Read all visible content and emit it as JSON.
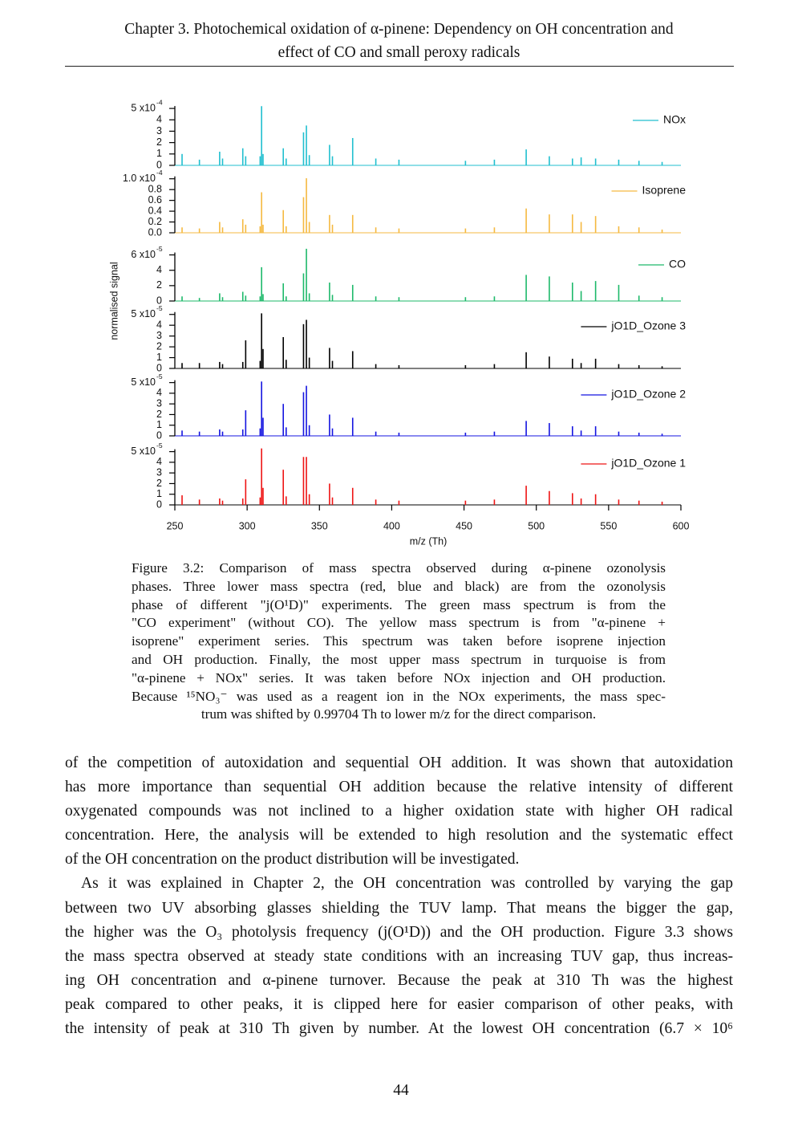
{
  "header": {
    "lines": [
      "Chapter 3. Photochemical oxidation of α-pinene: Dependency on OH concentration and",
      "effect of CO and small peroxy radicals"
    ]
  },
  "chart_data": [
    {
      "type": "bar",
      "name": "NOx",
      "color": "#20bfcf",
      "legend": "upper right",
      "xlim": [
        250,
        600
      ],
      "ylim": [
        0,
        0.00055
      ],
      "yticks": [
        0,
        {
          "value": 0.0001,
          "label": "1"
        },
        {
          "value": 0.0002,
          "label": "2"
        },
        {
          "value": 0.0003,
          "label": "3"
        },
        {
          "value": 0.0004,
          "label": "4"
        },
        {
          "value": 0.0005,
          "label": "5 x10",
          "exponent": "-4"
        }
      ],
      "x": [
        255,
        267,
        281,
        283,
        297,
        299,
        309,
        310,
        311,
        325,
        327,
        339,
        341,
        343,
        357,
        359,
        373,
        389,
        405,
        451,
        471,
        493,
        509,
        525,
        531,
        541,
        557,
        571,
        587
      ],
      "values": [
        0.0001,
        5e-05,
        0.00012,
        6e-05,
        0.00015,
        8e-05,
        8e-05,
        0.00052,
        0.0001,
        0.00015,
        6e-05,
        0.00029,
        0.00035,
        9e-05,
        0.00018,
        8e-05,
        0.00024,
        6e-05,
        5e-05,
        4e-05,
        5e-05,
        0.00014,
        8e-05,
        6e-05,
        7e-05,
        6e-05,
        5e-05,
        4e-05,
        3e-05
      ]
    },
    {
      "type": "bar",
      "name": "Isoprene",
      "color": "#f5b940",
      "legend": "upper right",
      "xlim": [
        250,
        600
      ],
      "ylim": [
        0,
        0.00011
      ],
      "yticks": [
        {
          "value": 0,
          "label": "0.0"
        },
        {
          "value": 2e-05,
          "label": "0.2"
        },
        {
          "value": 4e-05,
          "label": "0.4"
        },
        {
          "value": 6e-05,
          "label": "0.6"
        },
        {
          "value": 8e-05,
          "label": "0.8"
        },
        {
          "value": 0.0001,
          "label": "1.0 x10",
          "exponent": "-4"
        }
      ],
      "x": [
        255,
        267,
        281,
        283,
        297,
        299,
        309,
        310,
        311,
        325,
        327,
        339,
        341,
        343,
        357,
        359,
        373,
        389,
        405,
        451,
        471,
        493,
        509,
        525,
        531,
        541,
        557,
        571,
        587
      ],
      "values": [
        1e-05,
        8e-06,
        2e-05,
        1e-05,
        2.5e-05,
        1.5e-05,
        1.2e-05,
        7.5e-05,
        1.5e-05,
        4.2e-05,
        1.2e-05,
        6.6e-05,
        0.000101,
        2e-05,
        3.3e-05,
        1.5e-05,
        3.3e-05,
        1e-05,
        8e-06,
        8e-06,
        1e-05,
        4.5e-05,
        3.4e-05,
        3.4e-05,
        2e-05,
        3.1e-05,
        1.2e-05,
        1e-05,
        6e-06
      ]
    },
    {
      "type": "bar",
      "name": "CO",
      "color": "#1db96a",
      "legend": "upper right",
      "xlim": [
        250,
        600
      ],
      "ylim": [
        0,
        7e-05
      ],
      "ylabel": "normalised signal",
      "yticks": [
        0,
        {
          "value": 2e-05,
          "label": "2"
        },
        {
          "value": 4e-05,
          "label": "4"
        },
        {
          "value": 6e-05,
          "label": "6 x10",
          "exponent": "-5"
        }
      ],
      "x": [
        255,
        267,
        281,
        283,
        297,
        299,
        309,
        310,
        311,
        325,
        327,
        339,
        341,
        343,
        357,
        359,
        373,
        389,
        405,
        451,
        471,
        493,
        509,
        525,
        531,
        541,
        557,
        571,
        587
      ],
      "values": [
        6e-06,
        4e-06,
        1e-05,
        5e-06,
        1.2e-05,
        7e-06,
        6e-06,
        4.4e-05,
        9e-06,
        2.3e-05,
        6e-06,
        3.6e-05,
        6.8e-05,
        1e-05,
        2.4e-05,
        8e-06,
        2.1e-05,
        6e-06,
        5e-06,
        5e-06,
        6e-06,
        3.4e-05,
        3.2e-05,
        2.4e-05,
        1.3e-05,
        2.6e-05,
        2.1e-05,
        7e-06,
        5e-06
      ]
    },
    {
      "type": "bar",
      "name": "jO1D_Ozone 3",
      "color": "#000000",
      "legend": "upper right",
      "xlim": [
        250,
        600
      ],
      "ylim": [
        0,
        5.5e-05
      ],
      "yticks": [
        0,
        {
          "value": 1e-05,
          "label": "1"
        },
        {
          "value": 2e-05,
          "label": "2"
        },
        {
          "value": 3e-05,
          "label": "3"
        },
        {
          "value": 4e-05,
          "label": "4"
        },
        {
          "value": 5e-05,
          "label": "5 x10",
          "exponent": "-5"
        }
      ],
      "x": [
        255,
        267,
        281,
        283,
        297,
        299,
        309,
        310,
        311,
        325,
        327,
        339,
        341,
        343,
        357,
        359,
        373,
        389,
        405,
        451,
        471,
        493,
        509,
        525,
        531,
        541,
        557,
        571,
        587
      ],
      "values": [
        5e-06,
        5e-06,
        6e-06,
        4e-06,
        6e-06,
        2.6e-05,
        7e-06,
        5.1e-05,
        1.8e-05,
        2.9e-05,
        8e-06,
        4.1e-05,
        4.5e-05,
        1e-05,
        1.9e-05,
        7e-06,
        1.6e-05,
        4e-06,
        3e-06,
        3e-06,
        4e-06,
        1.5e-05,
        1.1e-05,
        9e-06,
        5e-06,
        9e-06,
        4e-06,
        3e-06,
        2e-06
      ]
    },
    {
      "type": "bar",
      "name": "jO1D_Ozone 2",
      "color": "#1414e0",
      "legend": "upper right",
      "xlim": [
        250,
        600
      ],
      "ylim": [
        0,
        5.5e-05
      ],
      "yticks": [
        0,
        {
          "value": 1e-05,
          "label": "1"
        },
        {
          "value": 2e-05,
          "label": "2"
        },
        {
          "value": 3e-05,
          "label": "3"
        },
        {
          "value": 4e-05,
          "label": "4"
        },
        {
          "value": 5e-05,
          "label": "5 x10",
          "exponent": "-5"
        }
      ],
      "x": [
        255,
        267,
        281,
        283,
        297,
        299,
        309,
        310,
        311,
        325,
        327,
        339,
        341,
        343,
        357,
        359,
        373,
        389,
        405,
        451,
        471,
        493,
        509,
        525,
        531,
        541,
        557,
        571,
        587
      ],
      "values": [
        5e-06,
        4e-06,
        6e-06,
        4e-06,
        6e-06,
        2.4e-05,
        7e-06,
        5.1e-05,
        1.7e-05,
        3e-05,
        8e-06,
        4.1e-05,
        4.7e-05,
        1e-05,
        2e-05,
        7e-06,
        1.7e-05,
        4e-06,
        3e-06,
        3e-06,
        4e-06,
        1.4e-05,
        1.2e-05,
        9e-06,
        5e-06,
        9e-06,
        4e-06,
        3e-06,
        2e-06
      ]
    },
    {
      "type": "bar",
      "name": "jO1D_Ozone 1",
      "color": "#ee1414",
      "legend": "upper right",
      "xlim": [
        250,
        600
      ],
      "xlabel": "m/z (Th)",
      "xticks": [
        250,
        300,
        350,
        400,
        450,
        500,
        550,
        600
      ],
      "ylim": [
        0,
        5.5e-05
      ],
      "yticks": [
        0,
        {
          "value": 1e-05,
          "label": "1"
        },
        {
          "value": 2e-05,
          "label": "2"
        },
        {
          "value": 3e-05,
          "label": "3"
        },
        {
          "value": 4e-05,
          "label": "4"
        },
        {
          "value": 5e-05,
          "label": "5 x10",
          "exponent": "-5"
        }
      ],
      "x": [
        255,
        267,
        281,
        283,
        297,
        299,
        309,
        310,
        311,
        325,
        327,
        339,
        341,
        343,
        357,
        359,
        373,
        389,
        405,
        451,
        471,
        493,
        509,
        525,
        531,
        541,
        557,
        571,
        587
      ],
      "values": [
        9e-06,
        5e-06,
        6e-06,
        4e-06,
        6e-06,
        2.4e-05,
        7e-06,
        5.3e-05,
        1.6e-05,
        3.3e-05,
        8e-06,
        4.5e-05,
        4.5e-05,
        1e-05,
        2e-05,
        7e-06,
        1.6e-05,
        5e-06,
        4e-06,
        4e-06,
        5e-06,
        1.8e-05,
        1.3e-05,
        1.1e-05,
        6e-06,
        1e-05,
        5e-06,
        4e-06,
        3e-06
      ]
    }
  ],
  "caption": {
    "lines": [
      "Figure 3.2: Comparison of mass spectra observed during α-pinene ozonolysis",
      "phases. Three lower mass spectra (red, blue and black) are from the ozonolysis",
      "phase of different \"j(O¹D)\" experiments. The green mass spectrum is from the",
      "\"CO experiment\" (without CO). The yellow mass spectrum is from \"α-pinene +",
      "isoprene\" experiment series. This spectrum was taken before isoprene injection",
      "and OH production. Finally, the most upper mass spectrum in turquoise is from",
      "\"α-pinene + NOx\" series. It was taken before NOx injection and OH production.",
      "Because ¹⁵NO₃⁻ was used as a reagent ion in the NOx experiments, the mass spec-",
      "trum was shifted by 0.99704 Th to lower m/z for the direct comparison."
    ]
  },
  "paragraphs": [
    {
      "lines": [
        "of the competition of autoxidation and sequential OH addition. It was shown that autoxidation",
        "has more importance than sequential OH addition because the relative intensity of different",
        "oxygenated compounds was not inclined to a higher oxidation state with higher OH radical",
        "concentration. Here, the analysis will be extended to high resolution and the systematic effect",
        "of the OH concentration on the product distribution will be investigated."
      ]
    },
    {
      "lines": [
        "As it was explained in Chapter 2, the OH concentration was controlled by varying the gap",
        "between two UV absorbing glasses shielding the TUV lamp. That means the bigger the gap,",
        "the higher was the O₃ photolysis frequency (j(O¹D)) and the OH production. Figure 3.3 shows",
        "the mass spectra observed at steady state conditions with an increasing TUV gap, thus increas-",
        "ing OH concentration and α-pinene turnover. Because the peak at 310 Th was the highest",
        "peak compared to other peaks, it is clipped here for easier comparison of other peaks, with",
        "the intensity of peak at 310 Th given by number. At the lowest OH concentration (6.7 × 10⁶"
      ]
    }
  ],
  "page_number": "44"
}
